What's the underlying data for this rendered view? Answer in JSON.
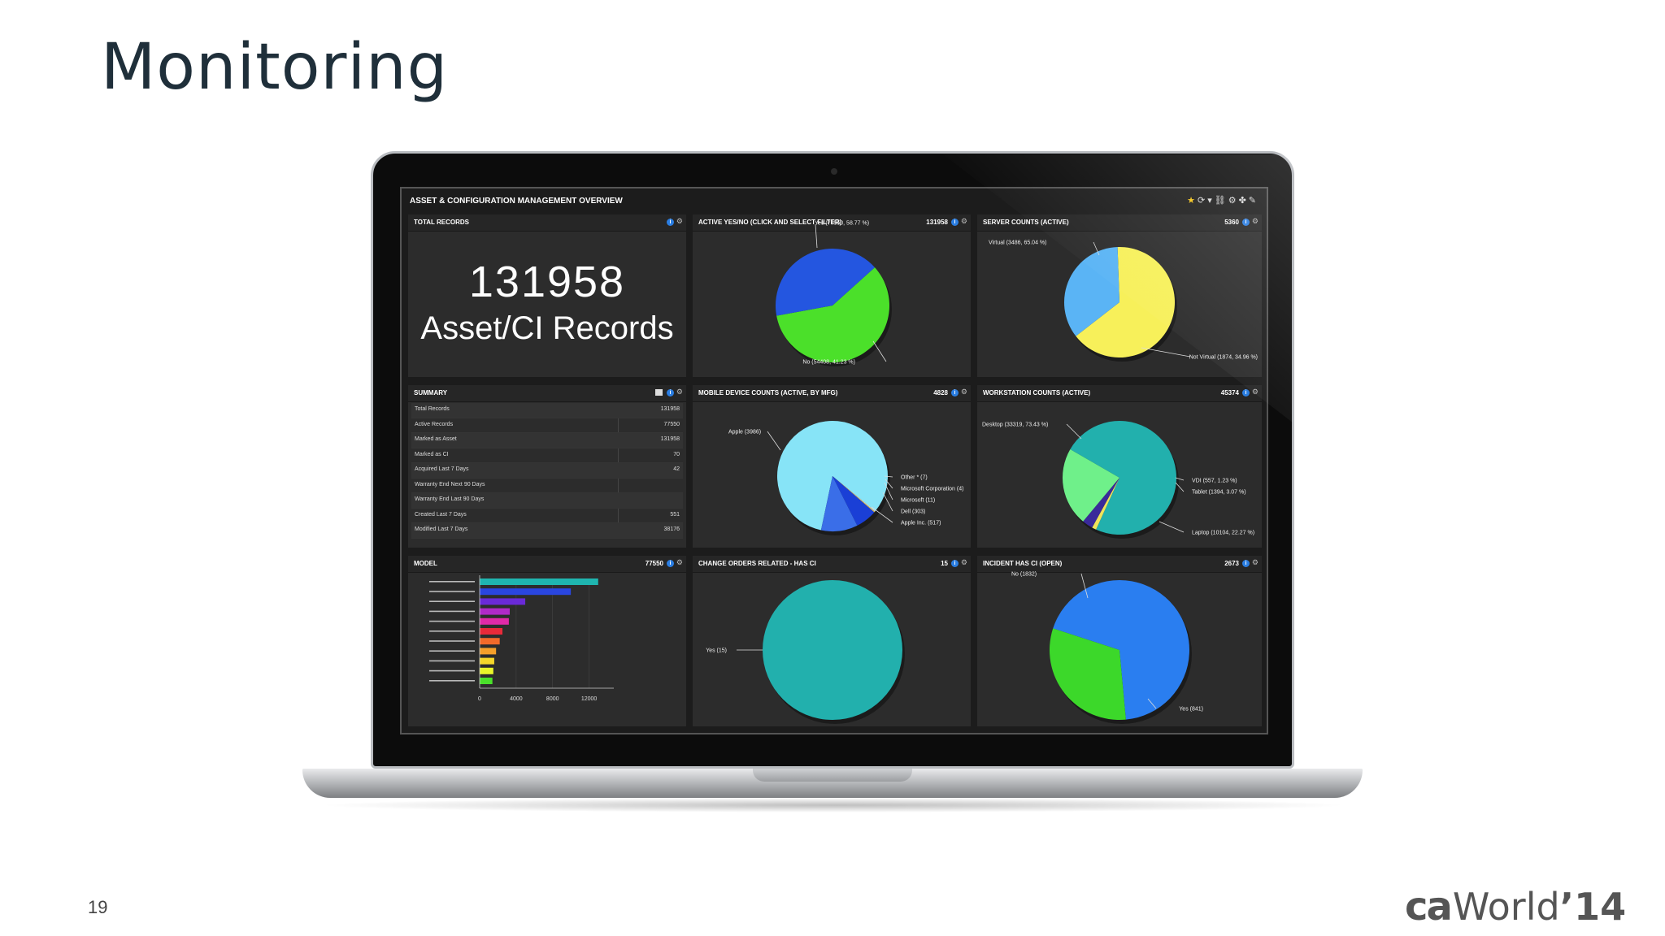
{
  "slide": {
    "title": "Monitoring",
    "page_number": "19",
    "brand_ca": "ca",
    "brand_world": "World",
    "brand_year": "’14"
  },
  "dashboard": {
    "title": "ASSET & CONFIGURATION MANAGEMENT OVERVIEW",
    "toolbar_icons": [
      "star-icon",
      "refresh-icon",
      "filter-icon",
      "link-icon",
      "settings-icon",
      "puzzle-icon",
      "edit-icon"
    ]
  },
  "panels": {
    "total_records": {
      "title": "TOTAL RECORDS",
      "value": "131958",
      "label": "Asset/CI Records"
    },
    "active": {
      "title": "ACTIVE YES/NO (CLICK AND SELECT FILTER)",
      "count": "131958"
    },
    "server": {
      "title": "SERVER COUNTS (ACTIVE)",
      "count": "5360"
    },
    "summary": {
      "title": "SUMMARY",
      "rows": [
        {
          "label": "Total Records",
          "value": "131958"
        },
        {
          "label": "Active Records",
          "value": "77550"
        },
        {
          "label": "Marked as Asset",
          "value": "131958"
        },
        {
          "label": "Marked as CI",
          "value": "70"
        },
        {
          "label": "Acquired Last 7 Days",
          "value": "42"
        },
        {
          "label": "Warranty End Next 90 Days",
          "value": ""
        },
        {
          "label": "Warranty End Last 90 Days",
          "value": ""
        },
        {
          "label": "Created Last 7 Days",
          "value": "551"
        },
        {
          "label": "Modified Last 7 Days",
          "value": "38176"
        }
      ]
    },
    "mobile": {
      "title": "MOBILE DEVICE COUNTS (ACTIVE, BY MFG)",
      "count": "4828"
    },
    "workstation": {
      "title": "WORKSTATION COUNTS (ACTIVE)",
      "count": "45374"
    },
    "model": {
      "title": "MODEL",
      "count": "77550"
    },
    "change": {
      "title": "CHANGE ORDERS RELATED - HAS CI",
      "count": "15"
    },
    "incident": {
      "title": "INCIDENT HAS CI (OPEN)",
      "count": "2673"
    }
  },
  "chart_data": [
    {
      "type": "pie",
      "title": "ACTIVE YES/NO (CLICK AND SELECT FILTER)",
      "labels": [
        "Yes (77550, 58.77 %)",
        "No (54408, 41.23 %)"
      ],
      "values": [
        77550,
        54408
      ],
      "colors": [
        "#4be02a",
        "#2456e0"
      ]
    },
    {
      "type": "pie",
      "title": "SERVER COUNTS (ACTIVE)",
      "labels": [
        "Virtual (3486, 65.04 %)",
        "Not Virtual (1874, 34.96 %)"
      ],
      "values": [
        3486,
        1874
      ],
      "colors": [
        "#f7f05a",
        "#5ab4f5"
      ]
    },
    {
      "type": "pie",
      "title": "MOBILE DEVICE COUNTS (ACTIVE, BY MFG)",
      "labels": [
        "Apple (3986)",
        "Other * (7)",
        "Microsoft Corporation (4)",
        "Microsoft (11)",
        "Dell (303)",
        "Apple Inc. (517)"
      ],
      "values": [
        3986,
        7,
        4,
        11,
        303,
        517
      ],
      "colors": [
        "#87e4f7",
        "#ffffff",
        "#c3c3c3",
        "#f5d24a",
        "#1a3fd6",
        "#3a6ee8"
      ]
    },
    {
      "type": "pie",
      "title": "WORKSTATION COUNTS (ACTIVE)",
      "labels": [
        "Desktop (33319, 73.43 %)",
        "VDI (557, 1.23 %)",
        "Tablet (1394, 3.07 %)",
        "Laptop (10104, 22.27 %)"
      ],
      "values": [
        33319,
        557,
        1394,
        10104
      ],
      "colors": [
        "#22b0ad",
        "#f0e45a",
        "#3a2a9a",
        "#6ff08a"
      ]
    },
    {
      "type": "bar",
      "title": "MODEL",
      "orientation": "horizontal",
      "categories": [
        "",
        "",
        "",
        "",
        "",
        "",
        "",
        "",
        "",
        "",
        ""
      ],
      "values": [
        13000,
        10000,
        5000,
        3300,
        3200,
        2500,
        2200,
        1800,
        1600,
        1500,
        1400
      ],
      "colors": [
        "#1fb5b0",
        "#2a46e0",
        "#6a2ad8",
        "#b02ac8",
        "#e02aa8",
        "#e82a3a",
        "#f26a2a",
        "#f5a02a",
        "#f5d72a",
        "#e8f52a",
        "#4ae02a"
      ],
      "xticks": [
        "0",
        "4000",
        "8000",
        "12000"
      ],
      "xlim": [
        0,
        14000
      ]
    },
    {
      "type": "pie",
      "title": "CHANGE ORDERS RELATED - HAS CI",
      "labels": [
        "Yes (15)"
      ],
      "values": [
        15
      ],
      "colors": [
        "#22b0ad"
      ]
    },
    {
      "type": "pie",
      "title": "INCIDENT HAS CI (OPEN)",
      "labels": [
        "No (1832)",
        "Yes (841)"
      ],
      "values": [
        1832,
        841
      ],
      "colors": [
        "#2a7ef0",
        "#3cd82a"
      ]
    }
  ]
}
